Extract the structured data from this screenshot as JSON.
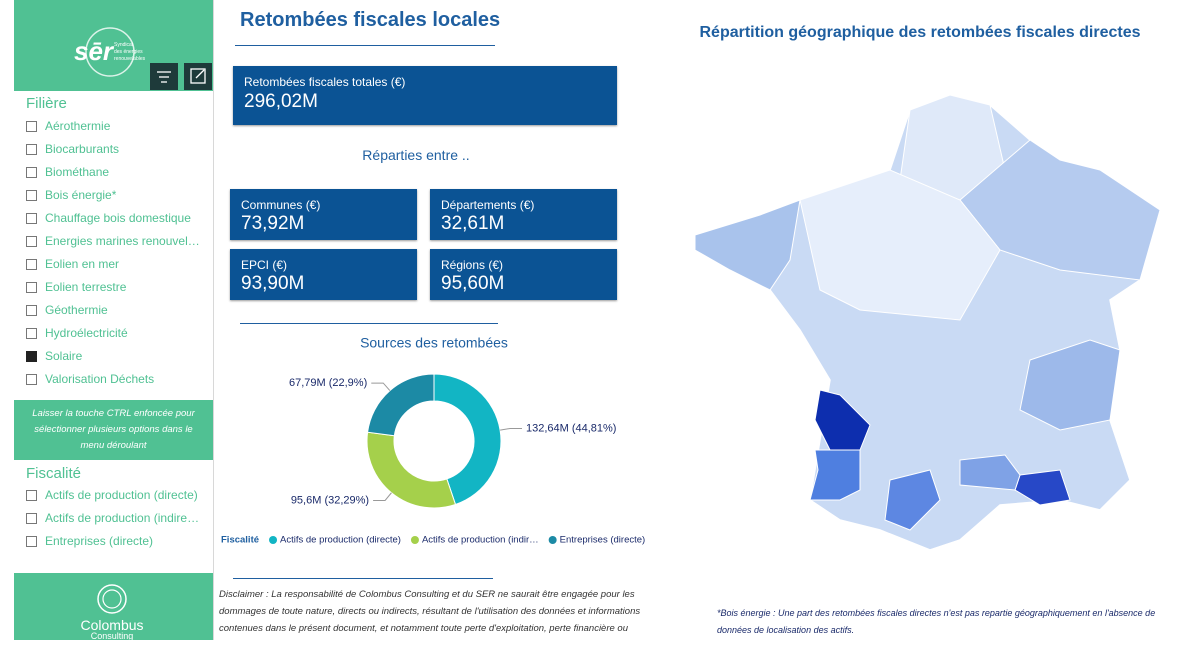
{
  "sidebar": {
    "filiere_title": "Filière",
    "filiere_items": [
      {
        "label": "Aérothermie",
        "checked": false
      },
      {
        "label": "Biocarburants",
        "checked": false
      },
      {
        "label": "Biométhane",
        "checked": false
      },
      {
        "label": "Bois énergie*",
        "checked": false
      },
      {
        "label": "Chauffage bois domestique",
        "checked": false
      },
      {
        "label": "Energies marines renouvel…",
        "checked": false
      },
      {
        "label": "Eolien en mer",
        "checked": false
      },
      {
        "label": "Eolien terrestre",
        "checked": false
      },
      {
        "label": "Géothermie",
        "checked": false
      },
      {
        "label": "Hydroélectricité",
        "checked": false
      },
      {
        "label": "Solaire",
        "checked": true
      },
      {
        "label": "Valorisation Déchets",
        "checked": false
      }
    ],
    "hint": "Laisser la touche CTRL enfoncée pour sélectionner plusieurs options dans le menu déroulant",
    "fiscalite_title": "Fiscalité",
    "fiscalite_items": [
      {
        "label": "Actifs de production (directe)",
        "checked": false
      },
      {
        "label": "Actifs de production (indire…",
        "checked": false
      },
      {
        "label": "Entreprises (directe)",
        "checked": false
      }
    ],
    "footer_logo": "Colombus",
    "footer_logo_sub": "Consulting"
  },
  "header": {
    "title": "Retombées fiscales locales"
  },
  "kpi_total": {
    "label": "Retombées fiscales totales (€)",
    "value": "296,02M"
  },
  "split_title": "Réparties entre ..",
  "kpis": [
    {
      "label": "Communes (€)",
      "value": "73,92M"
    },
    {
      "label": "Départements (€)",
      "value": "32,61M"
    },
    {
      "label": "EPCI (€)",
      "value": "93,90M"
    },
    {
      "label": "Régions (€)",
      "value": "95,60M"
    }
  ],
  "chart_data": {
    "type": "pie",
    "title": "Sources des retombées",
    "legend_title": "Fiscalité",
    "categories": [
      "Actifs de production (directe)",
      "Actifs de production (indir…",
      "Entreprises (directe)"
    ],
    "values": [
      44.81,
      32.29,
      22.9
    ],
    "value_labels": [
      "132,64M (44,81%)",
      "95,6M (32,29%)",
      "67,79M (22,9%)"
    ],
    "colors": [
      "#12b5c4",
      "#a5d04b",
      "#1c8aa5"
    ]
  },
  "disclaimer": "Disclaimer : La responsabilité de Colombus Consulting et du SER ne saurait être engagée pour les dommages de toute nature, directs ou indirects, résultant de l'utilisation des données et informations contenues dans le présent document, et notamment toute perte d'exploitation, perte financière ou commerciale.",
  "map": {
    "title": "Répartition géographique des retombées fiscales directes",
    "footnote": "*Bois énergie : Une part des retombées fiscales directes n'est pas repartie géographiquement en l'absence de données de localisation des actifs."
  }
}
